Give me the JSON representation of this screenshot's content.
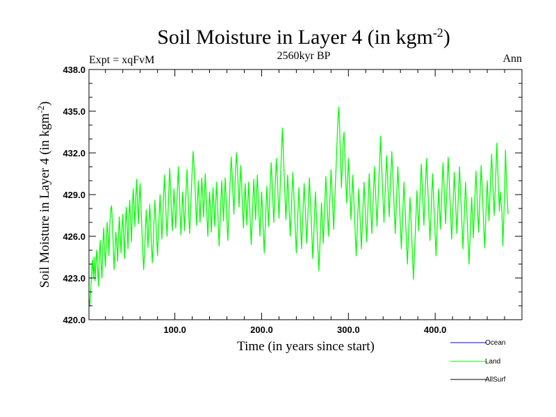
{
  "chart_data": {
    "type": "line",
    "title": "Soil Moisture in Layer 4 (in kgm",
    "title_sup": "-2",
    "title_end": ")",
    "left_label": "Expt = xqFvM",
    "center_label": "2560kyr BP",
    "right_label": "Ann",
    "ylabel": "Soil Moisture in Layer 4 (in kgm",
    "ylabel_sup": "-2",
    "ylabel_end": ")",
    "xlabel": "Time (in years since start)",
    "xlim": [
      1,
      500
    ],
    "ylim": [
      420.0,
      438.0
    ],
    "x_ticks": [
      100,
      200,
      300,
      400
    ],
    "x_tick_labels": [
      "100.0",
      "200.0",
      "300.0",
      "400.0"
    ],
    "y_ticks": [
      420,
      423,
      426,
      429,
      432,
      435,
      438
    ],
    "y_tick_labels": [
      "420.0",
      "423.0",
      "426.0",
      "429.0",
      "432.0",
      "435.0",
      "438.0"
    ],
    "legend": [
      {
        "name": "Ocean",
        "color": "#0000ff"
      },
      {
        "name": "Land",
        "color": "#00ff00"
      },
      {
        "name": "AllSurf",
        "color": "#000000"
      }
    ],
    "series": [
      {
        "name": "Land",
        "color": "#00ff00",
        "x_start": 1,
        "x_step": 1,
        "values": [
          421.5,
          421.0,
          422.0,
          423.5,
          424.3,
          423.0,
          424.5,
          422.8,
          424.2,
          425.0,
          423.6,
          422.4,
          424.8,
          425.7,
          424.0,
          423.0,
          425.4,
          426.6,
          425.0,
          423.8,
          425.5,
          427.0,
          426.2,
          424.6,
          426.8,
          427.9,
          428.2,
          427.0,
          425.3,
          423.6,
          424.9,
          426.3,
          425.5,
          424.2,
          426.0,
          427.4,
          426.1,
          424.8,
          426.5,
          427.6,
          425.9,
          424.4,
          426.9,
          428.1,
          426.7,
          425.1,
          427.4,
          428.6,
          427.1,
          425.6,
          428.0,
          429.4,
          428.2,
          426.7,
          428.9,
          430.1,
          428.4,
          426.9,
          428.7,
          429.8,
          428.0,
          426.5,
          425.0,
          423.6,
          424.7,
          426.3,
          427.9,
          426.8,
          425.2,
          426.7,
          428.3,
          427.0,
          425.4,
          424.1,
          425.3,
          427.1,
          428.6,
          427.3,
          425.9,
          424.6,
          426.1,
          427.6,
          429.0,
          427.4,
          425.8,
          427.2,
          428.9,
          430.4,
          428.9,
          427.3,
          426.0,
          427.5,
          429.1,
          430.9,
          429.6,
          427.8,
          426.4,
          427.9,
          429.4,
          428.1,
          426.6,
          428.0,
          429.5,
          431.0,
          429.4,
          427.7,
          426.1,
          427.6,
          429.2,
          428.0,
          426.4,
          427.9,
          429.4,
          430.8,
          429.2,
          427.5,
          426.2,
          427.7,
          429.3,
          430.8,
          432.1,
          431.2,
          429.9,
          428.3,
          426.8,
          428.4,
          430.0,
          428.6,
          427.0,
          428.5,
          430.2,
          429.0,
          427.4,
          428.8,
          430.5,
          429.1,
          427.5,
          426.0,
          427.6,
          429.2,
          428.0,
          426.3,
          427.9,
          429.5,
          428.3,
          426.7,
          428.3,
          429.9,
          428.5,
          426.9,
          425.3,
          426.8,
          428.5,
          430.0,
          428.6,
          427.1,
          428.7,
          430.2,
          428.8,
          427.2,
          425.7,
          427.2,
          428.8,
          430.4,
          431.7,
          430.5,
          429.0,
          427.6,
          429.2,
          430.8,
          432.0,
          431.0,
          429.6,
          428.1,
          429.7,
          431.1,
          429.6,
          428.1,
          426.6,
          428.2,
          429.8,
          428.4,
          426.8,
          428.3,
          429.9,
          428.4,
          426.9,
          425.4,
          426.9,
          428.6,
          430.1,
          428.7,
          427.2,
          428.8,
          430.4,
          429.0,
          427.5,
          426.0,
          427.6,
          429.2,
          427.8,
          426.3,
          424.8,
          426.4,
          428.0,
          429.6,
          428.2,
          426.7,
          428.3,
          429.9,
          431.3,
          430.0,
          428.5,
          427.0,
          428.6,
          430.2,
          431.6,
          430.3,
          428.8,
          427.3,
          428.9,
          430.5,
          432.4,
          433.8,
          432.0,
          430.3,
          428.7,
          427.2,
          428.8,
          430.4,
          429.0,
          427.5,
          426.0,
          427.6,
          429.2,
          430.6,
          429.2,
          427.7,
          426.2,
          424.8,
          426.4,
          428.0,
          429.5,
          428.1,
          426.6,
          425.1,
          426.7,
          428.3,
          429.8,
          428.4,
          426.9,
          425.5,
          427.1,
          428.7,
          430.2,
          428.8,
          427.4,
          425.9,
          424.4,
          426.0,
          427.7,
          429.2,
          427.8,
          426.3,
          424.9,
          423.5,
          425.1,
          426.8,
          428.4,
          427.0,
          425.5,
          427.1,
          428.7,
          430.3,
          428.9,
          427.5,
          426.0,
          427.6,
          429.2,
          430.8,
          429.4,
          428.0,
          426.5,
          428.1,
          429.7,
          431.3,
          432.9,
          434.5,
          435.3,
          433.6,
          431.4,
          429.5,
          431.1,
          432.9,
          433.5,
          431.6,
          429.9,
          428.4,
          430.0,
          431.6,
          430.2,
          428.7,
          427.2,
          428.8,
          430.4,
          429.0,
          427.5,
          426.0,
          424.6,
          426.2,
          427.8,
          429.4,
          428.0,
          426.5,
          425.1,
          426.7,
          428.3,
          429.9,
          428.5,
          427.1,
          425.6,
          427.2,
          428.9,
          430.5,
          429.1,
          427.6,
          426.2,
          427.8,
          429.4,
          431.0,
          429.6,
          428.2,
          426.7,
          428.3,
          429.9,
          431.5,
          433.2,
          431.6,
          430.0,
          428.5,
          427.0,
          428.6,
          430.2,
          431.8,
          430.4,
          428.9,
          427.4,
          429.0,
          430.6,
          432.1,
          430.7,
          429.2,
          427.7,
          426.2,
          427.8,
          429.4,
          431.0,
          429.6,
          428.1,
          426.6,
          425.1,
          426.7,
          428.3,
          429.9,
          428.5,
          427.0,
          425.5,
          424.0,
          425.6,
          427.2,
          428.8,
          427.4,
          425.9,
          424.4,
          422.9,
          424.5,
          426.1,
          427.7,
          429.3,
          427.9,
          426.4,
          428.0,
          429.6,
          431.2,
          429.8,
          428.3,
          426.8,
          428.4,
          430.0,
          431.6,
          430.2,
          428.7,
          427.2,
          425.7,
          427.3,
          428.9,
          430.5,
          429.1,
          427.6,
          426.1,
          424.6,
          426.2,
          427.8,
          429.4,
          428.0,
          426.5,
          428.1,
          429.7,
          431.3,
          429.9,
          428.4,
          426.9,
          428.5,
          430.1,
          431.7,
          430.3,
          428.8,
          427.3,
          425.8,
          427.4,
          429.0,
          430.6,
          429.2,
          427.7,
          426.2,
          427.8,
          429.4,
          431.0,
          429.6,
          428.1,
          426.6,
          425.1,
          426.7,
          428.3,
          429.9,
          428.5,
          427.0,
          425.5,
          424.0,
          425.6,
          427.2,
          428.8,
          427.4,
          425.9,
          427.5,
          429.1,
          430.7,
          429.3,
          427.8,
          426.3,
          427.9,
          429.5,
          431.1,
          429.7,
          428.2,
          426.7,
          425.2,
          426.8,
          428.4,
          430.0,
          428.6,
          427.1,
          428.7,
          430.3,
          431.9,
          430.5,
          429.0,
          427.5,
          429.1,
          430.7,
          432.7,
          431.0,
          429.3,
          427.8,
          429.2,
          428.5,
          427.6,
          425.3,
          427.2,
          429.1,
          432.2,
          430.4,
          428.7,
          427.6
        ]
      },
      {
        "name": "Ocean",
        "color": "#0000ff",
        "values": []
      },
      {
        "name": "AllSurf",
        "color": "#000000",
        "values": []
      }
    ]
  }
}
